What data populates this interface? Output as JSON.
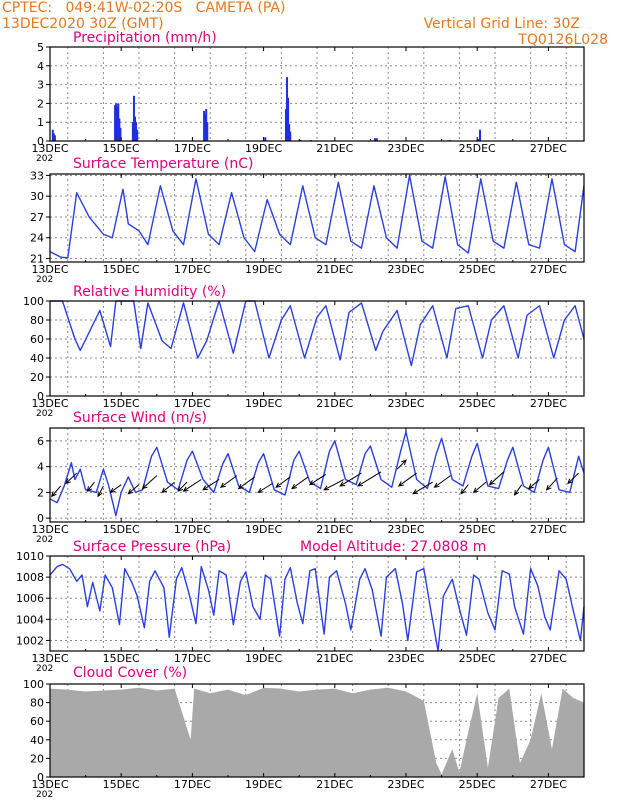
{
  "header": {
    "line1_left": "CPTEC:   049:41W-02:20S   CAMETA (PA)",
    "line2_left": "13DEC2020 30Z (GMT)",
    "line1_right": "Vertical Grid Line: 30Z",
    "line2_right": "TQ0126L028",
    "text_color": "#e8771e"
  },
  "colors": {
    "title": "#e0007f",
    "line": "#2a3fe0",
    "bars": "#1f2fe0",
    "cloud": "#a9a9a9",
    "grid": "#8a8a8a"
  },
  "x_axis": {
    "tick_labels": [
      "13DEC",
      "15DEC",
      "17DEC",
      "19DEC",
      "21DEC",
      "23DEC",
      "25DEC",
      "27DEC"
    ],
    "tick_days": [
      0,
      2,
      4,
      6,
      8,
      10,
      12,
      14
    ],
    "year_fragment": "202",
    "range_days": [
      0,
      15.0
    ]
  },
  "chart_data": [
    {
      "type": "bar",
      "title": "Precipitation (mm/h)",
      "ylim": [
        0,
        5
      ],
      "yticks": [
        "0",
        "1",
        "2",
        "3",
        "4",
        "5"
      ],
      "x_days": [
        0.05,
        0.08,
        0.11,
        1.8,
        1.83,
        1.86,
        1.89,
        1.92,
        1.95,
        2.3,
        2.33,
        2.36,
        2.39,
        2.42,
        4.3,
        4.33,
        4.36,
        4.39,
        6.02,
        6.6,
        6.63,
        6.66,
        6.69,
        6.72,
        7.0,
        7.3,
        9.1,
        9.15,
        11.2,
        12.0,
        12.05
      ],
      "values": [
        0.6,
        0.4,
        0.3,
        1.9,
        2.0,
        1.8,
        2.0,
        1.2,
        0.7,
        1.0,
        2.4,
        1.3,
        1.0,
        0.6,
        1.6,
        1.4,
        1.7,
        1.0,
        0.2,
        1.7,
        3.4,
        2.3,
        0.9,
        0.5,
        0.05,
        0.05,
        0.15,
        0.15,
        0.05,
        0.1,
        0.6
      ]
    },
    {
      "type": "line",
      "title": "Surface Temperature (nC)",
      "ylim": [
        20.5,
        33.2
      ],
      "yticks": [
        "21",
        "24",
        "27",
        "30",
        "33"
      ],
      "x_days": [
        0,
        0.3,
        0.5,
        0.75,
        1.1,
        1.5,
        1.75,
        2.05,
        2.2,
        2.5,
        2.75,
        3.1,
        3.45,
        3.75,
        4.1,
        4.45,
        4.75,
        5.1,
        5.45,
        5.75,
        6.1,
        6.45,
        6.75,
        7.1,
        7.45,
        7.75,
        8.1,
        8.45,
        8.75,
        9.1,
        9.45,
        9.75,
        10.1,
        10.45,
        10.75,
        11.1,
        11.45,
        11.75,
        12.1,
        12.45,
        12.75,
        13.1,
        13.45,
        13.75,
        14.1,
        14.45,
        14.75,
        15.0
      ],
      "values": [
        22,
        21.2,
        21.1,
        30.5,
        27,
        24.5,
        24,
        31,
        26,
        25,
        23,
        31.5,
        25,
        23,
        32.5,
        24.5,
        23,
        30.5,
        24,
        22,
        29.5,
        24.5,
        23,
        31.5,
        24,
        23,
        32,
        23.5,
        22.5,
        31.5,
        24,
        22.5,
        33,
        23.5,
        22.5,
        32.8,
        23,
        21.8,
        32.5,
        23.5,
        22.5,
        32,
        23,
        22.5,
        32.5,
        23,
        22,
        31.5
      ]
    },
    {
      "type": "line",
      "title": "Relative Humidity (%)",
      "ylim": [
        0,
        100
      ],
      "yticks": [
        "0",
        "20",
        "40",
        "60",
        "80",
        "100"
      ],
      "x_days": [
        0,
        0.35,
        0.7,
        0.85,
        1.4,
        1.7,
        1.85,
        2.1,
        2.35,
        2.55,
        2.75,
        3.15,
        3.4,
        3.75,
        4.15,
        4.4,
        4.75,
        5.15,
        5.5,
        5.75,
        6.15,
        6.5,
        6.75,
        7.15,
        7.5,
        7.75,
        8.15,
        8.4,
        8.75,
        9.15,
        9.35,
        9.75,
        10.15,
        10.4,
        10.75,
        11.15,
        11.4,
        11.75,
        12.15,
        12.4,
        12.75,
        13.15,
        13.4,
        13.75,
        14.15,
        14.45,
        14.75,
        15.0
      ],
      "values": [
        100,
        100,
        60,
        48,
        90,
        52,
        100,
        100,
        100,
        50,
        98,
        58,
        50,
        98,
        40,
        58,
        100,
        45,
        100,
        100,
        40,
        80,
        95,
        40,
        83,
        95,
        38,
        88,
        98,
        48,
        68,
        90,
        32,
        75,
        95,
        40,
        92,
        95,
        40,
        80,
        95,
        40,
        85,
        95,
        40,
        80,
        95,
        60
      ]
    },
    {
      "type": "line",
      "title": "Surface Wind (m/s)",
      "ylim": [
        -0.3,
        7
      ],
      "yticks": [
        "0",
        "2",
        "4",
        "6"
      ],
      "x_days": [
        0,
        0.2,
        0.4,
        0.6,
        0.7,
        0.85,
        1.0,
        1.3,
        1.5,
        1.65,
        1.85,
        2.0,
        2.2,
        2.4,
        2.6,
        2.85,
        3.0,
        3.3,
        3.6,
        3.85,
        4.0,
        4.3,
        4.6,
        4.85,
        5.0,
        5.3,
        5.6,
        5.85,
        6.0,
        6.3,
        6.6,
        6.85,
        7.0,
        7.3,
        7.6,
        7.85,
        8.0,
        8.3,
        8.6,
        8.85,
        9.0,
        9.3,
        9.6,
        9.85,
        10.0,
        10.3,
        10.6,
        10.85,
        11.0,
        11.3,
        11.6,
        11.85,
        12.0,
        12.3,
        12.6,
        12.85,
        13.0,
        13.3,
        13.6,
        13.85,
        14.0,
        14.3,
        14.6,
        14.85,
        15.0
      ],
      "values": [
        1.5,
        1.2,
        2.5,
        4.3,
        3.0,
        3.8,
        2.2,
        2.0,
        3.8,
        2.5,
        0.2,
        2.0,
        3.2,
        2.0,
        2.2,
        4.8,
        5.5,
        2.8,
        2.2,
        4.5,
        5.2,
        3.0,
        2.0,
        4.2,
        5.0,
        2.5,
        2.0,
        4.3,
        5.0,
        2.2,
        1.8,
        4.5,
        5.2,
        2.8,
        2.3,
        5.2,
        6.0,
        3.0,
        2.6,
        5.0,
        5.6,
        3.0,
        2.4,
        5.2,
        6.7,
        3.0,
        2.3,
        5.0,
        6.2,
        3.0,
        2.5,
        4.8,
        5.8,
        2.5,
        2.3,
        4.5,
        5.5,
        2.5,
        2.0,
        4.5,
        5.5,
        2.2,
        2.0,
        4.8,
        3.5
      ],
      "arrows": {
        "x_days": [
          0.3,
          0.75,
          1.25,
          1.5,
          2.0,
          2.5,
          3.0,
          3.5,
          3.85,
          4.25,
          4.75,
          5.25,
          5.75,
          6.25,
          6.75,
          7.25,
          7.75,
          8.25,
          8.75,
          9.3,
          9.75,
          10.3,
          10.75,
          11.25,
          11.75,
          12.25,
          12.75,
          13.25,
          13.75,
          14.25,
          14.85
        ],
        "from_y": [
          2.5,
          3.5,
          2.8,
          2.5,
          2.6,
          2.6,
          3.3,
          2.8,
          2.8,
          3.0,
          3.0,
          3.3,
          3.2,
          2.7,
          3.2,
          3.2,
          3.4,
          3.0,
          3.5,
          3.6,
          3.8,
          3.5,
          2.8,
          3.3,
          2.6,
          2.8,
          3.6,
          2.6,
          3.0,
          3.1,
          3.5
        ],
        "to_dx": [
          -0.25,
          -0.3,
          -0.2,
          -0.15,
          -0.3,
          -0.3,
          -0.4,
          -0.35,
          -0.25,
          -0.5,
          -0.45,
          -0.45,
          -0.45,
          -0.4,
          -0.4,
          -0.45,
          -0.45,
          -0.55,
          -0.6,
          -0.65,
          0.25,
          -0.5,
          -0.55,
          -0.45,
          -0.2,
          -0.35,
          -0.4,
          -0.2,
          -0.3,
          -0.3,
          -0.3
        ],
        "to_dy": [
          -0.8,
          -0.8,
          -0.7,
          -0.8,
          -0.6,
          -0.7,
          -1.0,
          -0.8,
          -0.7,
          -0.9,
          -0.8,
          -0.9,
          -0.9,
          -0.7,
          -0.8,
          -0.9,
          -0.8,
          -0.8,
          -1.0,
          -1.1,
          0.7,
          -1.0,
          -0.9,
          -0.9,
          -0.7,
          -0.8,
          -1.0,
          -0.8,
          -0.7,
          -0.9,
          -0.8
        ]
      }
    },
    {
      "type": "line",
      "title": "Surface Pressure (hPa)",
      "annotation": "Model Altitude: 27.0808  m",
      "ylim": [
        1001,
        1010
      ],
      "yticks": [
        "1002",
        "1004",
        "1006",
        "1008",
        "1010"
      ],
      "x_days": [
        0,
        0.2,
        0.35,
        0.55,
        0.75,
        0.9,
        1.05,
        1.2,
        1.4,
        1.55,
        1.75,
        1.95,
        2.1,
        2.3,
        2.45,
        2.65,
        2.8,
        2.95,
        3.2,
        3.35,
        3.55,
        3.7,
        3.9,
        4.1,
        4.25,
        4.45,
        4.6,
        4.75,
        4.95,
        5.15,
        5.35,
        5.5,
        5.7,
        5.9,
        6.05,
        6.2,
        6.45,
        6.6,
        6.75,
        6.95,
        7.1,
        7.3,
        7.45,
        7.7,
        7.85,
        8.05,
        8.3,
        8.45,
        8.7,
        8.85,
        9.05,
        9.3,
        9.45,
        9.7,
        9.9,
        10.05,
        10.3,
        10.5,
        10.7,
        10.9,
        11.05,
        11.3,
        11.5,
        11.7,
        11.9,
        12.05,
        12.3,
        12.5,
        12.7,
        12.9,
        13.05,
        13.3,
        13.5,
        13.7,
        13.9,
        14.05,
        14.3,
        14.5,
        14.7,
        14.9,
        15.0
      ],
      "values": [
        1008.2,
        1009.0,
        1009.2,
        1008.8,
        1007.6,
        1008.2,
        1005.2,
        1007.5,
        1004.8,
        1008.2,
        1007.0,
        1003.5,
        1008.8,
        1007.5,
        1006.2,
        1003.2,
        1007.6,
        1008.6,
        1007.0,
        1002.3,
        1007.8,
        1008.9,
        1006.5,
        1003.6,
        1009.0,
        1006.8,
        1004.4,
        1008.6,
        1008.2,
        1003.5,
        1007.6,
        1008.5,
        1005.2,
        1004.0,
        1008.2,
        1007.8,
        1002.4,
        1007.8,
        1008.9,
        1005.5,
        1003.6,
        1008.6,
        1008.8,
        1002.6,
        1008.0,
        1008.6,
        1005.5,
        1003.0,
        1007.8,
        1008.8,
        1006.8,
        1002.4,
        1008.0,
        1008.8,
        1005.5,
        1002.0,
        1008.5,
        1008.8,
        1004.8,
        1001.0,
        1006.2,
        1007.8,
        1005.0,
        1002.5,
        1008.2,
        1007.8,
        1004.6,
        1003.0,
        1008.6,
        1008.3,
        1005.2,
        1002.6,
        1008.8,
        1007.2,
        1004.2,
        1003.0,
        1008.6,
        1007.8,
        1004.8,
        1002.0,
        1005.2
      ]
    },
    {
      "type": "area",
      "title": "Cloud Cover (%)",
      "ylim": [
        0,
        100
      ],
      "yticks": [
        "0",
        "20",
        "40",
        "60",
        "80",
        "100"
      ],
      "x_days": [
        0,
        0.5,
        1.0,
        1.5,
        2.0,
        2.5,
        3.0,
        3.5,
        3.95,
        4.05,
        4.5,
        5.0,
        5.5,
        6.0,
        6.5,
        7.0,
        7.5,
        8.0,
        8.5,
        9.0,
        9.5,
        10.0,
        10.5,
        10.85,
        11.0,
        11.3,
        11.5,
        11.7,
        12.0,
        12.3,
        12.6,
        12.9,
        13.2,
        13.5,
        13.8,
        14.1,
        14.4,
        14.7,
        15.0
      ],
      "values": [
        95,
        94,
        92,
        93,
        94,
        96,
        93,
        95,
        40,
        95,
        90,
        94,
        88,
        96,
        95,
        92,
        94,
        95,
        90,
        94,
        96,
        92,
        82,
        15,
        3,
        30,
        5,
        40,
        90,
        10,
        85,
        95,
        15,
        40,
        90,
        30,
        95,
        85,
        80
      ]
    }
  ]
}
